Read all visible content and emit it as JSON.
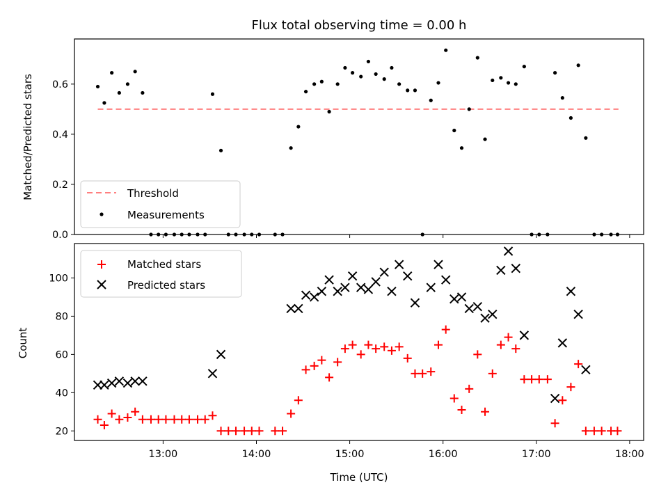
{
  "chart_data": {
    "type": "scatter",
    "title": "Flux total observing time = 0.00 h",
    "xlabel": "Time (UTC)",
    "x_tick_labels": [
      "13:00",
      "14:00",
      "15:00",
      "16:00",
      "17:00",
      "18:00"
    ],
    "x_tick_hours": [
      13,
      14,
      15,
      16,
      17,
      18
    ],
    "xlim_hours": [
      12.05,
      18.15
    ],
    "panels": [
      {
        "id": "ratio",
        "ylabel": "Matched/Predicted stars",
        "ylim": [
          0,
          0.78
        ],
        "y_ticks": [
          0.0,
          0.2,
          0.4,
          0.6
        ],
        "y_tick_labels": [
          "0.0",
          "0.2",
          "0.4",
          "0.6"
        ],
        "legend": {
          "placement": "lower-left",
          "entries": [
            "Threshold",
            "Measurements"
          ]
        },
        "threshold": {
          "name": "Threshold",
          "value": 0.5,
          "x_range_hours": [
            12.3,
            17.88
          ],
          "color": "#ff7f7f",
          "style": "dashed"
        },
        "measurements": {
          "name": "Measurements",
          "color": "#000000",
          "points": [
            [
              12.3,
              0.59
            ],
            [
              12.37,
              0.525
            ],
            [
              12.45,
              0.645
            ],
            [
              12.53,
              0.565
            ],
            [
              12.62,
              0.6
            ],
            [
              12.7,
              0.65
            ],
            [
              12.78,
              0.565
            ],
            [
              12.87,
              0.0
            ],
            [
              12.95,
              0.0
            ],
            [
              13.03,
              0.0
            ],
            [
              13.12,
              0.0
            ],
            [
              13.2,
              0.0
            ],
            [
              13.28,
              0.0
            ],
            [
              13.37,
              0.0
            ],
            [
              13.45,
              0.0
            ],
            [
              13.53,
              0.56
            ],
            [
              13.62,
              0.335
            ],
            [
              13.7,
              0.0
            ],
            [
              13.78,
              0.0
            ],
            [
              13.87,
              0.0
            ],
            [
              13.95,
              0.0
            ],
            [
              14.03,
              0.0
            ],
            [
              14.2,
              0.0
            ],
            [
              14.28,
              0.0
            ],
            [
              14.37,
              0.345
            ],
            [
              14.45,
              0.43
            ],
            [
              14.53,
              0.57
            ],
            [
              14.62,
              0.6
            ],
            [
              14.7,
              0.61
            ],
            [
              14.78,
              0.49
            ],
            [
              14.87,
              0.6
            ],
            [
              14.95,
              0.665
            ],
            [
              15.03,
              0.645
            ],
            [
              15.12,
              0.63
            ],
            [
              15.2,
              0.69
            ],
            [
              15.28,
              0.64
            ],
            [
              15.37,
              0.62
            ],
            [
              15.45,
              0.665
            ],
            [
              15.53,
              0.6
            ],
            [
              15.62,
              0.575
            ],
            [
              15.7,
              0.575
            ],
            [
              15.78,
              0.0
            ],
            [
              15.87,
              0.535
            ],
            [
              15.95,
              0.605
            ],
            [
              16.03,
              0.735
            ],
            [
              16.12,
              0.415
            ],
            [
              16.2,
              0.345
            ],
            [
              16.28,
              0.5
            ],
            [
              16.37,
              0.705
            ],
            [
              16.45,
              0.38
            ],
            [
              16.53,
              0.615
            ],
            [
              16.62,
              0.625
            ],
            [
              16.7,
              0.605
            ],
            [
              16.78,
              0.6
            ],
            [
              16.87,
              0.67
            ],
            [
              16.95,
              0.0
            ],
            [
              17.03,
              0.0
            ],
            [
              17.12,
              0.0
            ],
            [
              17.2,
              0.645
            ],
            [
              17.28,
              0.545
            ],
            [
              17.37,
              0.465
            ],
            [
              17.45,
              0.675
            ],
            [
              17.53,
              0.385
            ],
            [
              17.62,
              0.0
            ],
            [
              17.7,
              0.0
            ],
            [
              17.8,
              0.0
            ],
            [
              17.87,
              0.0
            ]
          ]
        }
      },
      {
        "id": "counts",
        "ylabel": "Count",
        "ylim": [
          15,
          118
        ],
        "y_ticks": [
          20,
          40,
          60,
          80,
          100
        ],
        "y_tick_labels": [
          "20",
          "40",
          "60",
          "80",
          "100"
        ],
        "legend": {
          "placement": "upper-left",
          "entries": [
            "Matched stars",
            "Predicted stars"
          ]
        },
        "series": [
          {
            "name": "Matched stars",
            "marker": "plus",
            "color": "#ff0000",
            "points": [
              [
                12.3,
                26
              ],
              [
                12.37,
                23
              ],
              [
                12.45,
                29
              ],
              [
                12.53,
                26
              ],
              [
                12.62,
                27
              ],
              [
                12.7,
                30
              ],
              [
                12.78,
                26
              ],
              [
                12.87,
                26
              ],
              [
                12.95,
                26
              ],
              [
                13.03,
                26
              ],
              [
                13.12,
                26
              ],
              [
                13.2,
                26
              ],
              [
                13.28,
                26
              ],
              [
                13.37,
                26
              ],
              [
                13.45,
                26
              ],
              [
                13.53,
                28
              ],
              [
                13.62,
                20
              ],
              [
                13.7,
                20
              ],
              [
                13.78,
                20
              ],
              [
                13.87,
                20
              ],
              [
                13.95,
                20
              ],
              [
                14.03,
                20
              ],
              [
                14.2,
                20
              ],
              [
                14.28,
                20
              ],
              [
                14.37,
                29
              ],
              [
                14.45,
                36
              ],
              [
                14.53,
                52
              ],
              [
                14.62,
                54
              ],
              [
                14.7,
                57
              ],
              [
                14.78,
                48
              ],
              [
                14.87,
                56
              ],
              [
                14.95,
                63
              ],
              [
                15.03,
                65
              ],
              [
                15.12,
                60
              ],
              [
                15.2,
                65
              ],
              [
                15.28,
                63
              ],
              [
                15.37,
                64
              ],
              [
                15.45,
                62
              ],
              [
                15.53,
                64
              ],
              [
                15.62,
                58
              ],
              [
                15.7,
                50
              ],
              [
                15.78,
                50
              ],
              [
                15.87,
                51
              ],
              [
                15.95,
                65
              ],
              [
                16.03,
                73
              ],
              [
                16.12,
                37
              ],
              [
                16.2,
                31
              ],
              [
                16.28,
                42
              ],
              [
                16.37,
                60
              ],
              [
                16.45,
                30
              ],
              [
                16.53,
                50
              ],
              [
                16.62,
                65
              ],
              [
                16.7,
                69
              ],
              [
                16.78,
                63
              ],
              [
                16.87,
                47
              ],
              [
                16.95,
                47
              ],
              [
                17.03,
                47
              ],
              [
                17.12,
                47
              ],
              [
                17.2,
                24
              ],
              [
                17.28,
                36
              ],
              [
                17.37,
                43
              ],
              [
                17.45,
                55
              ],
              [
                17.53,
                20
              ],
              [
                17.62,
                20
              ],
              [
                17.7,
                20
              ],
              [
                17.8,
                20
              ],
              [
                17.87,
                20
              ]
            ]
          },
          {
            "name": "Predicted stars",
            "marker": "x",
            "color": "#000000",
            "points": [
              [
                12.3,
                44
              ],
              [
                12.37,
                44
              ],
              [
                12.45,
                45
              ],
              [
                12.53,
                46
              ],
              [
                12.62,
                45
              ],
              [
                12.7,
                46
              ],
              [
                12.78,
                46
              ],
              [
                13.53,
                50
              ],
              [
                13.62,
                60
              ],
              [
                14.37,
                84
              ],
              [
                14.45,
                84
              ],
              [
                14.53,
                91
              ],
              [
                14.62,
                90
              ],
              [
                14.7,
                93
              ],
              [
                14.78,
                99
              ],
              [
                14.87,
                93
              ],
              [
                14.95,
                95
              ],
              [
                15.03,
                101
              ],
              [
                15.12,
                95
              ],
              [
                15.2,
                94
              ],
              [
                15.28,
                98
              ],
              [
                15.37,
                103
              ],
              [
                15.45,
                93
              ],
              [
                15.53,
                107
              ],
              [
                15.62,
                101
              ],
              [
                15.7,
                87
              ],
              [
                15.87,
                95
              ],
              [
                15.95,
                107
              ],
              [
                16.03,
                99
              ],
              [
                16.12,
                89
              ],
              [
                16.2,
                90
              ],
              [
                16.28,
                84
              ],
              [
                16.37,
                85
              ],
              [
                16.45,
                79
              ],
              [
                16.53,
                81
              ],
              [
                16.62,
                104
              ],
              [
                16.7,
                114
              ],
              [
                16.78,
                105
              ],
              [
                16.87,
                70
              ],
              [
                17.2,
                37
              ],
              [
                17.28,
                66
              ],
              [
                17.37,
                93
              ],
              [
                17.45,
                81
              ],
              [
                17.53,
                52
              ]
            ]
          }
        ]
      }
    ]
  }
}
